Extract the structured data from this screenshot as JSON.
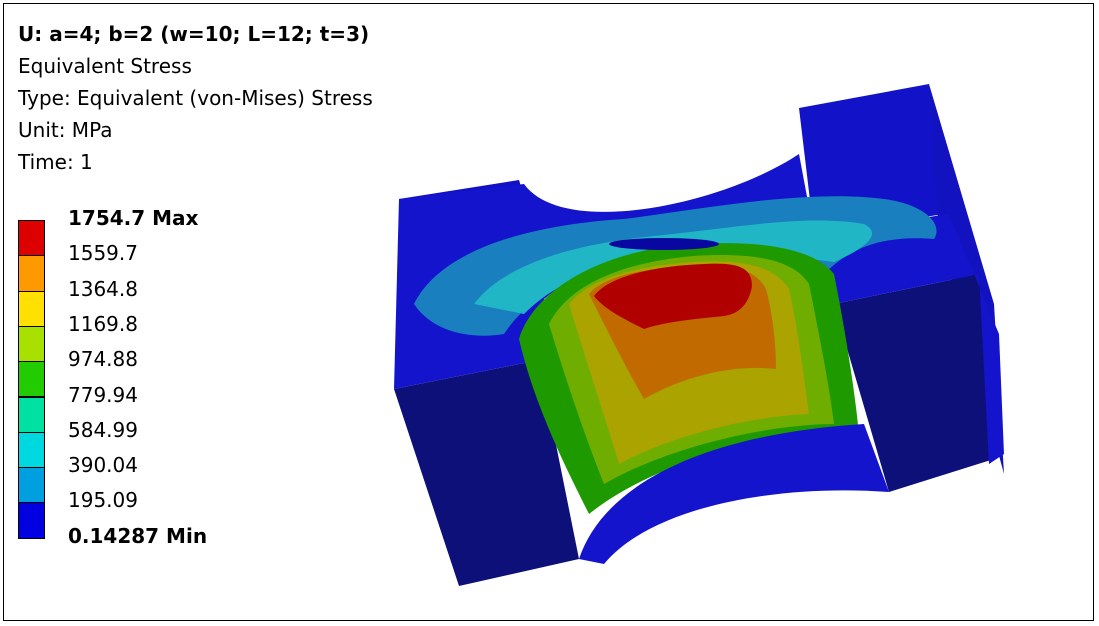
{
  "header": {
    "title": "U: a=4; b=2 (w=10; L=12; t=3)",
    "result": "Equivalent Stress",
    "type": "Type: Equivalent (von-Mises) Stress",
    "unit": "Unit: MPa",
    "time": "Time: 1"
  },
  "legend": {
    "max_label": "1754.7 Max",
    "min_label": "0.14287 Min",
    "levels": [
      "1559.7",
      "1364.8",
      "1169.8",
      "974.88",
      "779.94",
      "584.99",
      "390.04",
      "195.09"
    ],
    "colors": [
      "#dd0000",
      "#ff9900",
      "#ffe000",
      "#a8e000",
      "#22cc00",
      "#00e0a0",
      "#00d8e0",
      "#00a0e0",
      "#0000e0"
    ]
  },
  "model": {
    "description_colors": {
      "dark_blue": "#0a0f8c",
      "blue": "#1515d0",
      "light_blue": "#1a8ac0",
      "cyan": "#20b8c8",
      "green": "#1fa000",
      "yellow_green": "#b0b000",
      "orange": "#c87000",
      "red": "#b80000"
    }
  }
}
